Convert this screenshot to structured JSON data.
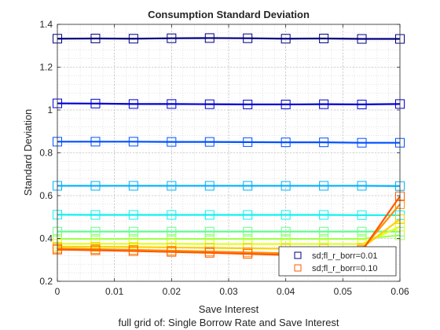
{
  "chart_data": {
    "type": "line",
    "title": "Consumption Standard Deviation",
    "xlabel": "Save Interest",
    "ylabel": "Standard Deviation",
    "caption": "full grid of: Single Borrow Rate and Save Interest",
    "xlim": [
      0,
      0.06
    ],
    "ylim": [
      0.2,
      1.4
    ],
    "xticks": [
      0,
      0.01,
      0.02,
      0.03,
      0.04,
      0.05,
      0.06
    ],
    "xtick_labels": [
      "0",
      "0.01",
      "0.02",
      "0.03",
      "0.04",
      "0.05",
      "0.06"
    ],
    "yticks": [
      0.2,
      0.4,
      0.6,
      0.8,
      1.0,
      1.2,
      1.4
    ],
    "ytick_labels": [
      "0.2",
      "0.4",
      "0.6",
      "0.8",
      "1",
      "1.2",
      "1.4"
    ],
    "grid": true,
    "minor_grid": true,
    "legend_position": "bottom-right",
    "legend": [
      {
        "label": "sd;fl_r_borr=0.01",
        "color": "#00007f"
      },
      {
        "label": "sd;fl_r_borr=0.10",
        "color": "#ff5a00"
      }
    ],
    "x": [
      0,
      0.00667,
      0.01333,
      0.02,
      0.02667,
      0.03333,
      0.04,
      0.04667,
      0.05333,
      0.06
    ],
    "series": [
      {
        "color": "#00007f",
        "values": [
          1.333,
          1.334,
          1.333,
          1.335,
          1.336,
          1.335,
          1.333,
          1.334,
          1.332,
          1.332
        ]
      },
      {
        "color": "#0000d0",
        "values": [
          1.031,
          1.03,
          1.028,
          1.028,
          1.027,
          1.026,
          1.026,
          1.027,
          1.026,
          1.028
        ]
      },
      {
        "color": "#0050ff",
        "values": [
          0.852,
          0.852,
          0.852,
          0.851,
          0.851,
          0.85,
          0.849,
          0.849,
          0.847,
          0.847
        ]
      },
      {
        "color": "#00b0ff",
        "values": [
          0.646,
          0.646,
          0.646,
          0.646,
          0.646,
          0.646,
          0.646,
          0.646,
          0.646,
          0.645
        ]
      },
      {
        "color": "#10f0f0",
        "values": [
          0.511,
          0.51,
          0.51,
          0.51,
          0.51,
          0.51,
          0.51,
          0.51,
          0.509,
          0.509
        ]
      },
      {
        "color": "#60ff90",
        "values": [
          0.432,
          0.432,
          0.432,
          0.432,
          0.432,
          0.432,
          0.432,
          0.432,
          0.432,
          0.432
        ]
      },
      {
        "color": "#a0ff50",
        "values": [
          0.398,
          0.398,
          0.398,
          0.398,
          0.398,
          0.398,
          0.398,
          0.398,
          0.398,
          0.415
        ]
      },
      {
        "color": "#e0ff10",
        "values": [
          0.375,
          0.375,
          0.375,
          0.375,
          0.374,
          0.374,
          0.374,
          0.374,
          0.374,
          0.455
        ]
      },
      {
        "color": "#ffd000",
        "values": [
          0.362,
          0.361,
          0.36,
          0.358,
          0.356,
          0.354,
          0.352,
          0.351,
          0.355,
          0.49
        ]
      },
      {
        "color": "#ff9000",
        "values": [
          0.353,
          0.35,
          0.347,
          0.343,
          0.339,
          0.335,
          0.331,
          0.33,
          0.348,
          0.56
        ]
      },
      {
        "color": "#ff5a00",
        "values": [
          0.348,
          0.345,
          0.341,
          0.337,
          0.333,
          0.328,
          0.323,
          0.322,
          0.342,
          0.597
        ]
      }
    ]
  }
}
